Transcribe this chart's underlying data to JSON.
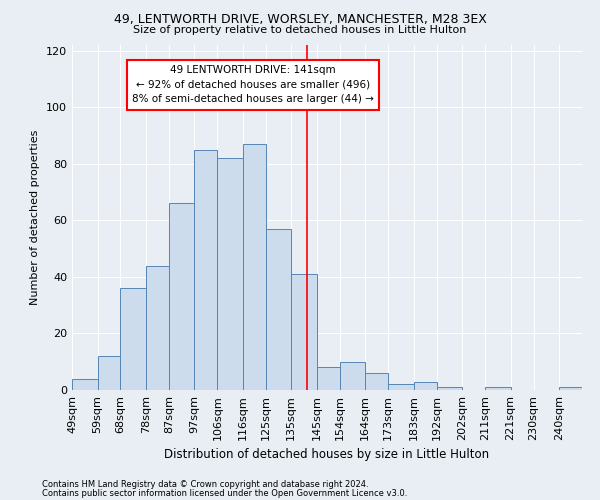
{
  "title1": "49, LENTWORTH DRIVE, WORSLEY, MANCHESTER, M28 3EX",
  "title2": "Size of property relative to detached houses in Little Hulton",
  "xlabel": "Distribution of detached houses by size in Little Hulton",
  "ylabel": "Number of detached properties",
  "footnote1": "Contains HM Land Registry data © Crown copyright and database right 2024.",
  "footnote2": "Contains public sector information licensed under the Open Government Licence v3.0.",
  "bin_labels": [
    "49sqm",
    "59sqm",
    "68sqm",
    "78sqm",
    "87sqm",
    "97sqm",
    "106sqm",
    "116sqm",
    "125sqm",
    "135sqm",
    "145sqm",
    "154sqm",
    "164sqm",
    "173sqm",
    "183sqm",
    "192sqm",
    "202sqm",
    "211sqm",
    "221sqm",
    "230sqm",
    "240sqm"
  ],
  "hist_values": [
    4,
    12,
    36,
    44,
    66,
    85,
    82,
    87,
    57,
    41,
    8,
    10,
    6,
    2,
    3,
    1,
    0,
    1,
    0,
    0,
    1
  ],
  "bin_edges": [
    49,
    59,
    68,
    78,
    87,
    97,
    106,
    116,
    125,
    135,
    145,
    154,
    164,
    173,
    183,
    192,
    202,
    211,
    221,
    230,
    240,
    249
  ],
  "bar_color": "#ccdcec",
  "bar_edge_color": "#5585b5",
  "vline_x": 141,
  "vline_color": "red",
  "annotation_title": "49 LENTWORTH DRIVE: 141sqm",
  "annotation_line1": "← 92% of detached houses are smaller (496)",
  "annotation_line2": "8% of semi-detached houses are larger (44) →",
  "ylim": [
    0,
    122
  ],
  "background_color": "#e8eef4",
  "grid_color": "#ffffff"
}
